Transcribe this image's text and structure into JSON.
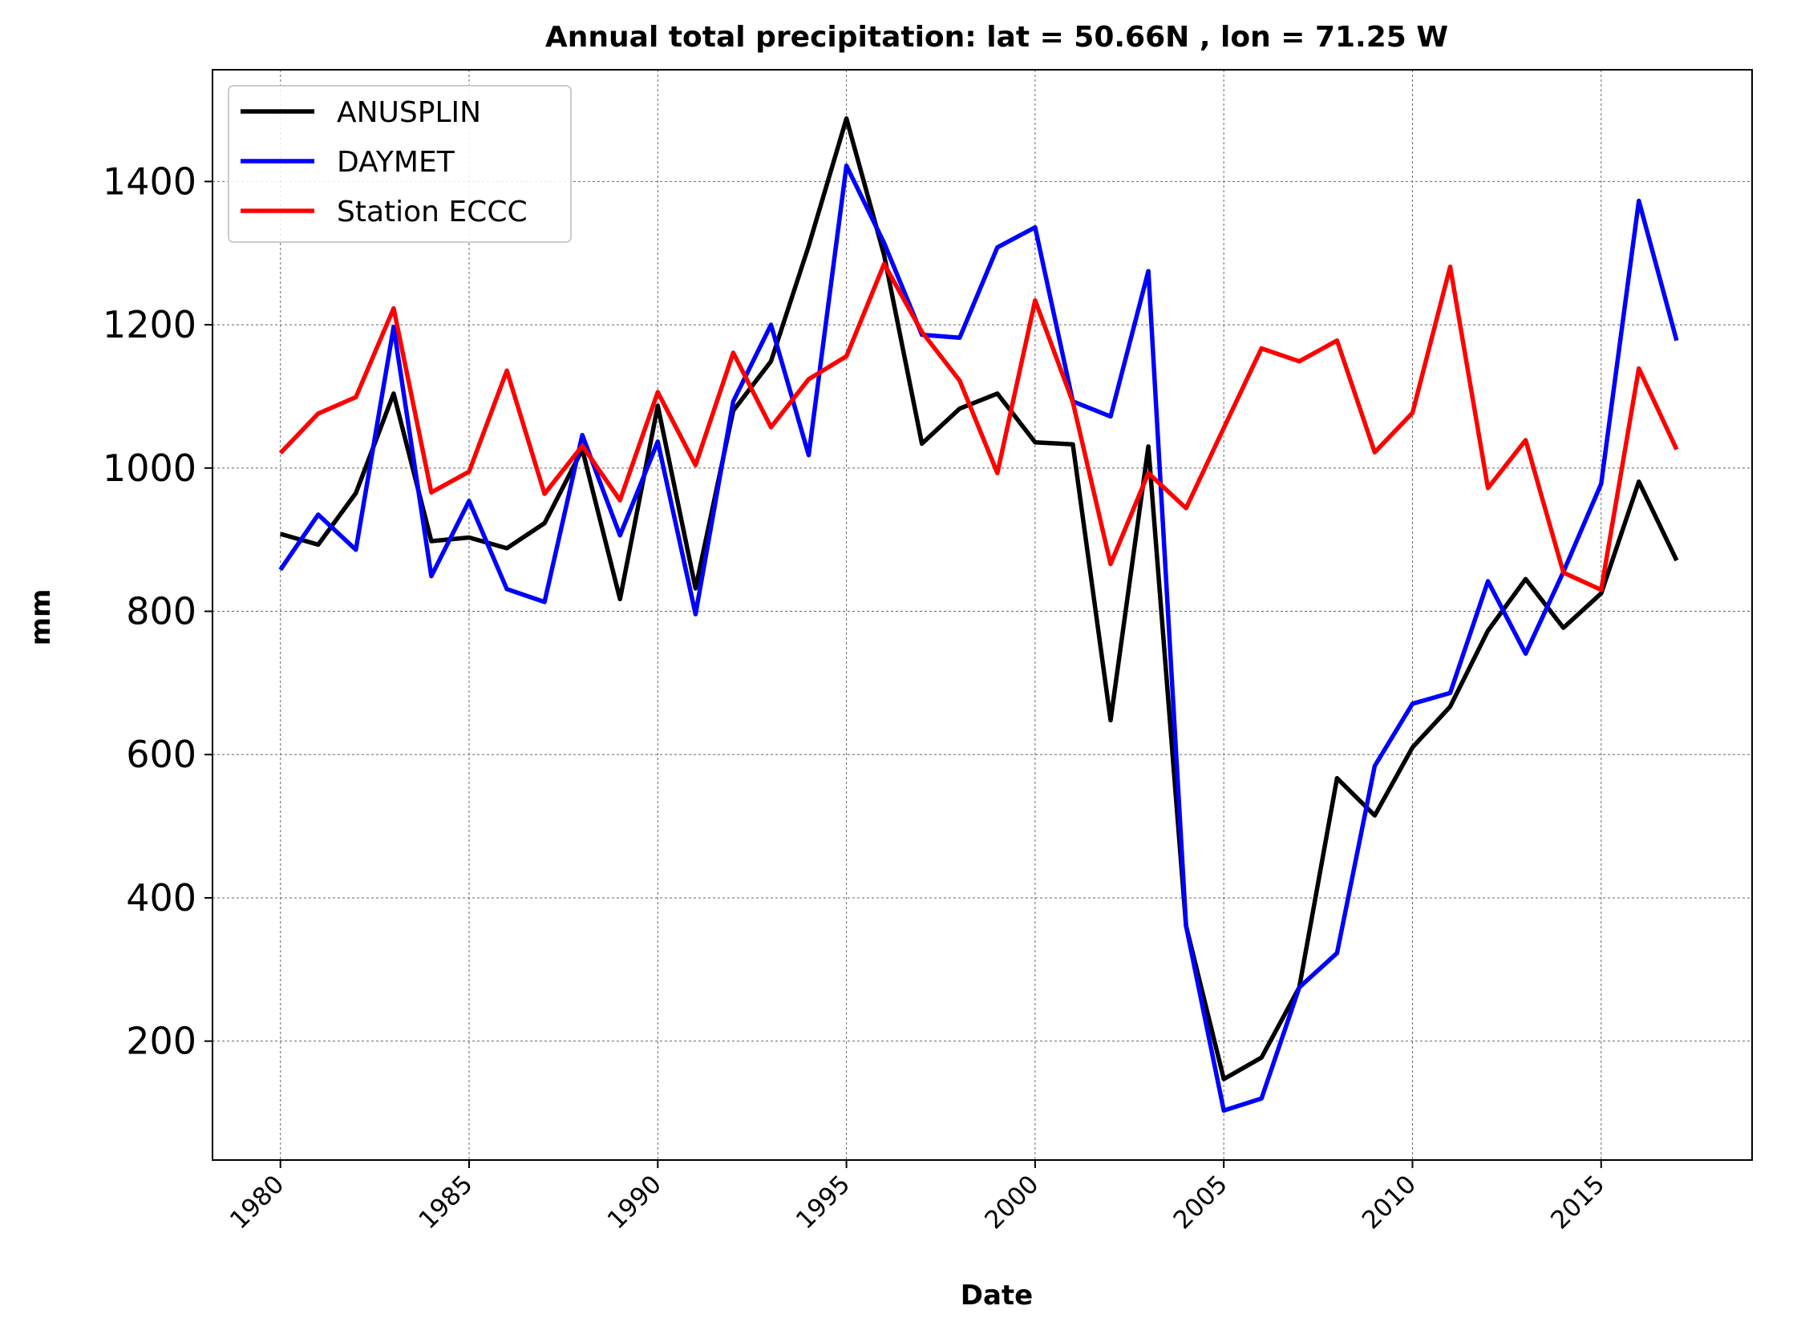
{
  "chart_data": {
    "type": "line",
    "title": "Annual total precipitation: lat = 50.66N , lon = 71.25 W",
    "xlabel": "Date",
    "ylabel": "mm",
    "xlim": [
      1978.2,
      2019.0
    ],
    "ylim": [
      34,
      1556
    ],
    "xticks": [
      1980,
      1985,
      1990,
      1995,
      2000,
      2005,
      2010,
      2015
    ],
    "xtick_labels": [
      "1980",
      "1985",
      "1990",
      "1995",
      "2000",
      "2005",
      "2010",
      "2015"
    ],
    "yticks": [
      200,
      400,
      600,
      800,
      1000,
      1200,
      1400
    ],
    "ytick_labels": [
      "200",
      "400",
      "600",
      "800",
      "1000",
      "1200",
      "1400"
    ],
    "grid": true,
    "legend_position": "top-left",
    "x": [
      1980,
      1981,
      1982,
      1983,
      1984,
      1985,
      1986,
      1987,
      1988,
      1989,
      1990,
      1991,
      1992,
      1993,
      1994,
      1995,
      1996,
      1997,
      1998,
      1999,
      2000,
      2001,
      2002,
      2003,
      2004,
      2005,
      2006,
      2007,
      2008,
      2009,
      2010,
      2011,
      2012,
      2013,
      2014,
      2015,
      2016,
      2017
    ],
    "series": [
      {
        "name": "ANUSPLIN",
        "color": "#000000",
        "values": [
          908,
          893,
          965,
          1104,
          898,
          903,
          888,
          923,
          1026,
          817,
          1087,
          832,
          1080,
          1149,
          1310,
          1488,
          1297,
          1034,
          1083,
          1104,
          1036,
          1033,
          648,
          1030,
          361,
          147,
          177,
          275,
          567,
          515,
          610,
          667,
          773,
          845,
          777,
          825,
          981,
          871
        ]
      },
      {
        "name": "DAYMET",
        "color": "#0000ff",
        "values": [
          858,
          935,
          886,
          1197,
          849,
          954,
          831,
          813,
          1046,
          906,
          1037,
          796,
          1093,
          1200,
          1018,
          1422,
          1314,
          1186,
          1182,
          1308,
          1336,
          1093,
          1072,
          1275,
          361,
          103,
          120,
          275,
          323,
          584,
          671,
          686,
          842,
          741,
          855,
          978,
          1373,
          1178
        ]
      },
      {
        "name": "Station ECCC",
        "color": "#ff0000",
        "values": [
          1021,
          1076,
          1099,
          1223,
          966,
          995,
          1136,
          964,
          1031,
          955,
          1106,
          1004,
          1161,
          1057,
          1124,
          1156,
          1285,
          1190,
          1122,
          993,
          1234,
          1092,
          866,
          993,
          944,
          1056,
          1167,
          1149,
          1178,
          1022,
          1077,
          1281,
          972,
          1039,
          854,
          830,
          1139,
          1026
        ]
      }
    ]
  }
}
